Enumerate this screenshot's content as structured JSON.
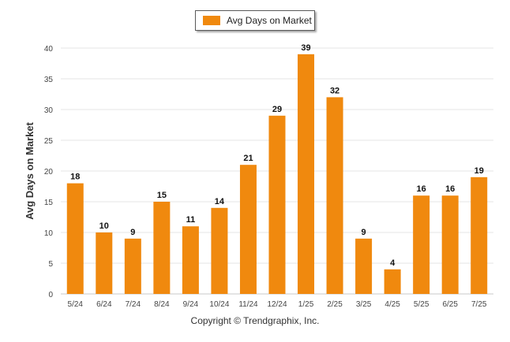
{
  "chart_data": {
    "type": "bar",
    "categories": [
      "5/24",
      "6/24",
      "7/24",
      "8/24",
      "9/24",
      "10/24",
      "11/24",
      "12/24",
      "1/25",
      "2/25",
      "3/25",
      "4/25",
      "5/25",
      "6/25",
      "7/25"
    ],
    "series": [
      {
        "name": "Avg Days on Market",
        "values": [
          18,
          10,
          9,
          15,
          11,
          14,
          21,
          29,
          39,
          32,
          9,
          4,
          16,
          16,
          19
        ],
        "color": "#f0890e"
      }
    ],
    "ylabel": "Avg Days on Market",
    "xlabel": "",
    "ylim": [
      0,
      40
    ],
    "yticks": [
      0,
      5,
      10,
      15,
      20,
      25,
      30,
      35,
      40
    ],
    "grid": true,
    "legend_position": "top-center",
    "data_labels": true
  },
  "footer": {
    "copyright": "Copyright © Trendgraphix, Inc."
  }
}
